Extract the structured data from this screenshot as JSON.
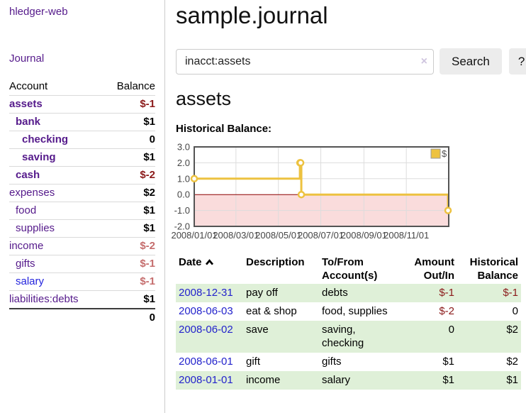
{
  "app": {
    "brand": "hledger-web"
  },
  "sidebar": {
    "journal_link": "Journal",
    "accounts_table": {
      "headers": {
        "account": "Account",
        "balance": "Balance"
      },
      "rows": [
        {
          "name": "assets",
          "depth": 1,
          "bold": true,
          "balance": "$-1",
          "balance_style": "neg"
        },
        {
          "name": "bank",
          "depth": 2,
          "bold": true,
          "balance": "$1",
          "balance_style": "pos"
        },
        {
          "name": "checking",
          "depth": 3,
          "bold": true,
          "balance": "0",
          "balance_style": "pos"
        },
        {
          "name": "saving",
          "depth": 3,
          "bold": true,
          "balance": "$1",
          "balance_style": "pos"
        },
        {
          "name": "cash",
          "depth": 2,
          "bold": true,
          "balance": "$-2",
          "balance_style": "neg"
        },
        {
          "name": "expenses",
          "depth": 1,
          "bold": false,
          "balance": "$2",
          "balance_style": "pos"
        },
        {
          "name": "food",
          "depth": 2,
          "bold": false,
          "balance": "$1",
          "balance_style": "pos"
        },
        {
          "name": "supplies",
          "depth": 2,
          "bold": false,
          "balance": "$1",
          "balance_style": "pos"
        },
        {
          "name": "income",
          "depth": 1,
          "bold": false,
          "balance": "$-2",
          "balance_style": "negmuted"
        },
        {
          "name": "gifts",
          "depth": 2,
          "bold": false,
          "balance": "$-1",
          "balance_style": "negmuted"
        },
        {
          "name": "salary",
          "depth": 2,
          "bold": false,
          "link_style": "unvisited",
          "balance": "$-1",
          "balance_style": "negmuted"
        },
        {
          "name": "liabilities:debts",
          "depth": 1,
          "bold": false,
          "balance": "$1",
          "balance_style": "pos"
        }
      ],
      "total": "0"
    }
  },
  "header": {
    "title": "sample.journal"
  },
  "search": {
    "value": "inacct:assets",
    "clear_icon": "×",
    "button_label": "Search",
    "help_label": "?"
  },
  "account_page": {
    "heading": "assets",
    "chart_label": "Historical Balance:"
  },
  "chart_data": {
    "type": "line",
    "style": "step",
    "series": [
      {
        "name": "$",
        "points": [
          {
            "date": "2008/01/01",
            "day": 0,
            "value": 1
          },
          {
            "date": "2008/06/01",
            "day": 152,
            "value": 2
          },
          {
            "date": "2008/06/02",
            "day": 153,
            "value": 2
          },
          {
            "date": "2008/06/03",
            "day": 154,
            "value": 0
          },
          {
            "date": "2008/12/31",
            "day": 365,
            "value": -1
          }
        ]
      }
    ],
    "x_ticks": [
      {
        "label": "2008/01/01",
        "day": 0
      },
      {
        "label": "2008/03/01",
        "day": 60
      },
      {
        "label": "2008/05/01",
        "day": 121
      },
      {
        "label": "2008/07/01",
        "day": 182
      },
      {
        "label": "2008/09/01",
        "day": 244
      },
      {
        "label": "2008/11/01",
        "day": 305
      }
    ],
    "y_ticks": [
      "3.0",
      "2.0",
      "1.0",
      "0.0",
      "-1.0",
      "-2.0"
    ],
    "ylim": [
      -2,
      3
    ],
    "xlim_days": [
      0,
      366
    ],
    "grid": true,
    "legend": {
      "label": "$",
      "position": "top-right"
    },
    "colors": {
      "line": "#edc240",
      "point_fill": "#ffffff",
      "below_zero_fill": "#fadcdc",
      "zero_line": "#8b0000",
      "border": "#545454",
      "grid": "#dddddd",
      "tick_text": "#454545"
    }
  },
  "transactions": {
    "headers": {
      "date": "Date",
      "description": "Description",
      "tofrom": "To/From Account(s)",
      "amount": "Amount Out/In",
      "balance": "Historical Balance"
    },
    "rows": [
      {
        "date": "2008-12-31",
        "description": "pay off",
        "accounts": "debts",
        "amount": "$-1",
        "amount_neg": true,
        "balance": "$-1",
        "balance_neg": true
      },
      {
        "date": "2008-06-03",
        "description": "eat & shop",
        "accounts": "food, supplies",
        "amount": "$-2",
        "amount_neg": true,
        "balance": "0",
        "balance_neg": false
      },
      {
        "date": "2008-06-02",
        "description": "save",
        "accounts": "saving, checking",
        "amount": "0",
        "amount_neg": false,
        "balance": "$2",
        "balance_neg": false
      },
      {
        "date": "2008-06-01",
        "description": "gift",
        "accounts": "gifts",
        "amount": "$1",
        "amount_neg": false,
        "balance": "$2",
        "balance_neg": false
      },
      {
        "date": "2008-01-01",
        "description": "income",
        "accounts": "salary",
        "amount": "$1",
        "amount_neg": false,
        "balance": "$1",
        "balance_neg": false
      }
    ]
  }
}
